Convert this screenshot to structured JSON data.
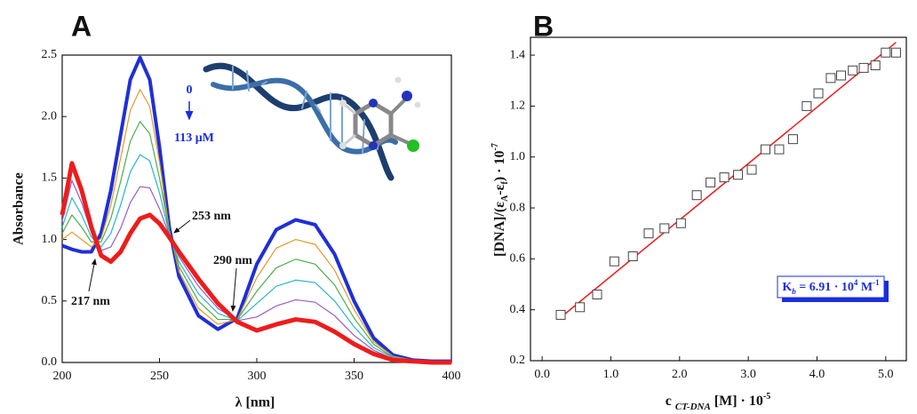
{
  "panels": [
    "A",
    "B"
  ],
  "chart_data": [
    {
      "type": "line",
      "x_label": "λ [nm]",
      "y_label": "Absorbance",
      "annotations": [
        "0",
        "113 μM",
        "253 nm",
        "217 nm",
        "290 nm"
      ],
      "x": [
        200,
        205,
        210,
        215,
        220,
        225,
        230,
        235,
        240,
        245,
        250,
        255,
        260,
        270,
        280,
        290,
        300,
        310,
        320,
        330,
        340,
        350,
        360,
        370,
        380,
        390,
        400
      ],
      "series": [
        {
          "color": "#1f2fd8",
          "values": [
            0.95,
            0.92,
            0.9,
            0.9,
            1.05,
            1.4,
            1.85,
            2.3,
            2.48,
            2.3,
            1.75,
            1.1,
            0.7,
            0.38,
            0.27,
            0.36,
            0.8,
            1.08,
            1.16,
            1.12,
            0.88,
            0.5,
            0.2,
            0.06,
            0.02,
            0.01,
            0.01
          ]
        },
        {
          "color": "#e39a2d",
          "values": [
            1.0,
            1.06,
            1.0,
            0.94,
            1.01,
            1.28,
            1.66,
            2.05,
            2.22,
            2.08,
            1.63,
            1.08,
            0.74,
            0.44,
            0.31,
            0.35,
            0.69,
            0.93,
            1.0,
            0.96,
            0.75,
            0.43,
            0.17,
            0.05,
            0.02,
            0.01,
            0.01
          ]
        },
        {
          "color": "#4fae4a",
          "values": [
            1.05,
            1.2,
            1.1,
            0.98,
            0.98,
            1.17,
            1.47,
            1.8,
            1.96,
            1.86,
            1.5,
            1.07,
            0.78,
            0.5,
            0.35,
            0.35,
            0.58,
            0.77,
            0.84,
            0.8,
            0.63,
            0.36,
            0.15,
            0.04,
            0.02,
            0.01,
            0.01
          ]
        },
        {
          "color": "#2bb5c9",
          "values": [
            1.1,
            1.34,
            1.2,
            1.02,
            0.94,
            1.05,
            1.28,
            1.55,
            1.69,
            1.64,
            1.38,
            1.05,
            0.82,
            0.56,
            0.4,
            0.34,
            0.48,
            0.62,
            0.67,
            0.65,
            0.5,
            0.29,
            0.12,
            0.04,
            0.01,
            0,
            0
          ]
        },
        {
          "color": "#9a5bc4",
          "values": [
            1.15,
            1.48,
            1.3,
            1.06,
            0.91,
            0.94,
            1.09,
            1.3,
            1.43,
            1.42,
            1.25,
            1.04,
            0.86,
            0.62,
            0.44,
            0.34,
            0.37,
            0.46,
            0.51,
            0.49,
            0.38,
            0.22,
            0.1,
            0.03,
            0.01,
            0,
            0
          ]
        },
        {
          "color": "#ee1c1c",
          "values": [
            1.2,
            1.62,
            1.4,
            1.1,
            0.87,
            0.82,
            0.9,
            1.05,
            1.17,
            1.2,
            1.13,
            1.02,
            0.9,
            0.68,
            0.48,
            0.33,
            0.26,
            0.31,
            0.35,
            0.33,
            0.25,
            0.15,
            0.07,
            0.02,
            0.01,
            0,
            0
          ]
        }
      ],
      "xlim": [
        200,
        400
      ],
      "xticks": [
        200,
        250,
        300,
        350,
        400
      ],
      "ylim": [
        0,
        2.5
      ],
      "yticks": [
        {
          "value": 0,
          "label": "0.0"
        },
        0.5,
        {
          "value": 1,
          "label": "1.0"
        },
        1.5,
        {
          "value": 2,
          "label": "2.0"
        },
        2.5
      ]
    },
    {
      "type": "scatter",
      "x_label": [
        "c ",
        "CT-DNA",
        " [M] · 10",
        "-5"
      ],
      "y_label": [
        "[DNA]/(ε",
        "A",
        "-ε",
        "f",
        ") · 10",
        "-7"
      ],
      "annotation": [
        "K",
        "b",
        " = 6.91 · 10",
        "4",
        " M",
        "-1"
      ],
      "series": [
        {
          "color": "#444444",
          "x": [
            0.27,
            0.55,
            0.8,
            1.05,
            1.32,
            1.55,
            1.78,
            2.02,
            2.25,
            2.45,
            2.65,
            2.85,
            3.05,
            3.25,
            3.45,
            3.65,
            3.85,
            4.02,
            4.2,
            4.35,
            4.52,
            4.68,
            4.85,
            5.0,
            5.15
          ],
          "values": [
            0.38,
            0.41,
            0.46,
            0.59,
            0.61,
            0.7,
            0.72,
            0.74,
            0.85,
            0.9,
            0.92,
            0.93,
            0.95,
            1.03,
            1.03,
            1.07,
            1.2,
            1.25,
            1.31,
            1.32,
            1.34,
            1.35,
            1.36,
            1.41,
            1.41
          ]
        }
      ],
      "fit_line": {
        "color": "#ee1c1c",
        "x": [
          0.27,
          5.15
        ],
        "values": [
          0.37,
          1.45
        ]
      },
      "xlim": [
        -0.17,
        5.3
      ],
      "xticks": [
        {
          "value": 0,
          "label": "0.0"
        },
        {
          "value": 1,
          "label": "1.0"
        },
        {
          "value": 2,
          "label": "2.0"
        },
        {
          "value": 3,
          "label": "3.0"
        },
        {
          "value": 4,
          "label": "4.0"
        },
        {
          "value": 5,
          "label": "5.0"
        }
      ],
      "ylim": [
        0.2,
        1.47
      ],
      "yticks": [
        0.2,
        0.4,
        0.6,
        0.8,
        {
          "value": 1,
          "label": "1.0"
        },
        1.2,
        1.4
      ]
    }
  ]
}
